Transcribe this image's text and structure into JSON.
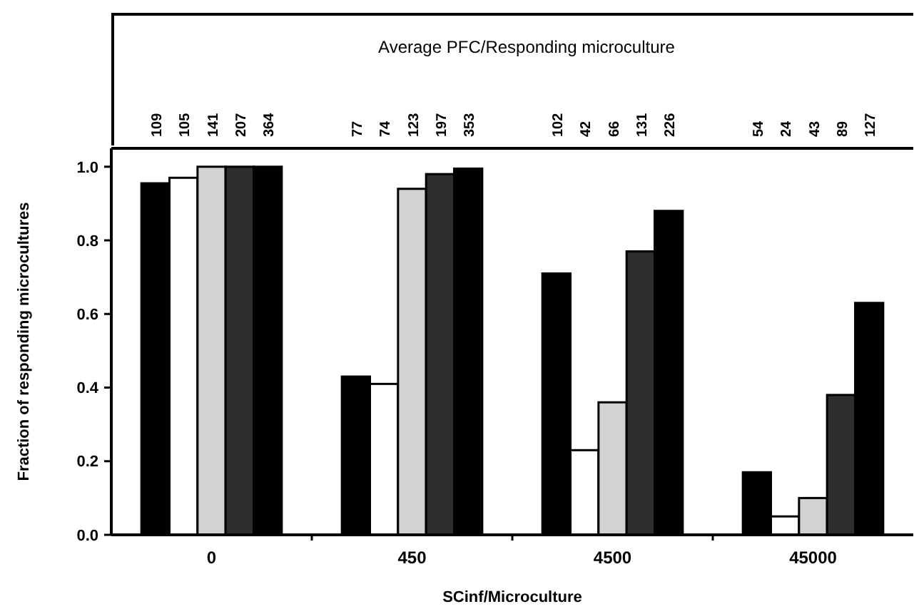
{
  "chart_data": [
    {
      "type": "other",
      "title": "Average PFC/Responding microculture",
      "annotations": [
        "109",
        "105",
        "141",
        "207",
        "364",
        "77",
        "74",
        "123",
        "197",
        "353",
        "102",
        "42",
        "66",
        "131",
        "226",
        "54",
        "24",
        "43",
        "89",
        "127"
      ]
    },
    {
      "type": "bar",
      "xlabel": "SCinf/Microculture",
      "ylabel": "Fraction of responding microcultures",
      "categories": [
        "0",
        "450",
        "4500",
        "45000"
      ],
      "series": [
        {
          "color": "#000000",
          "values": [
            0.955,
            0.43,
            0.71,
            0.17
          ]
        },
        {
          "color": "#ffffff",
          "values": [
            0.97,
            0.41,
            0.23,
            0.05
          ]
        },
        {
          "color": "#d2d2d2",
          "values": [
            1.0,
            0.94,
            0.36,
            0.1
          ]
        },
        {
          "color": "#2e2e2e",
          "values": [
            1.0,
            0.98,
            0.77,
            0.38
          ]
        },
        {
          "color": "#000000",
          "values": [
            1.0,
            0.995,
            0.88,
            0.63
          ]
        }
      ],
      "ylim": [
        0,
        1.05
      ],
      "yticks": [
        {
          "value": 0,
          "label": "0.0"
        },
        0.2,
        0.4,
        0.6,
        0.8,
        {
          "value": 1,
          "label": "1.0"
        }
      ],
      "grid": false
    }
  ]
}
